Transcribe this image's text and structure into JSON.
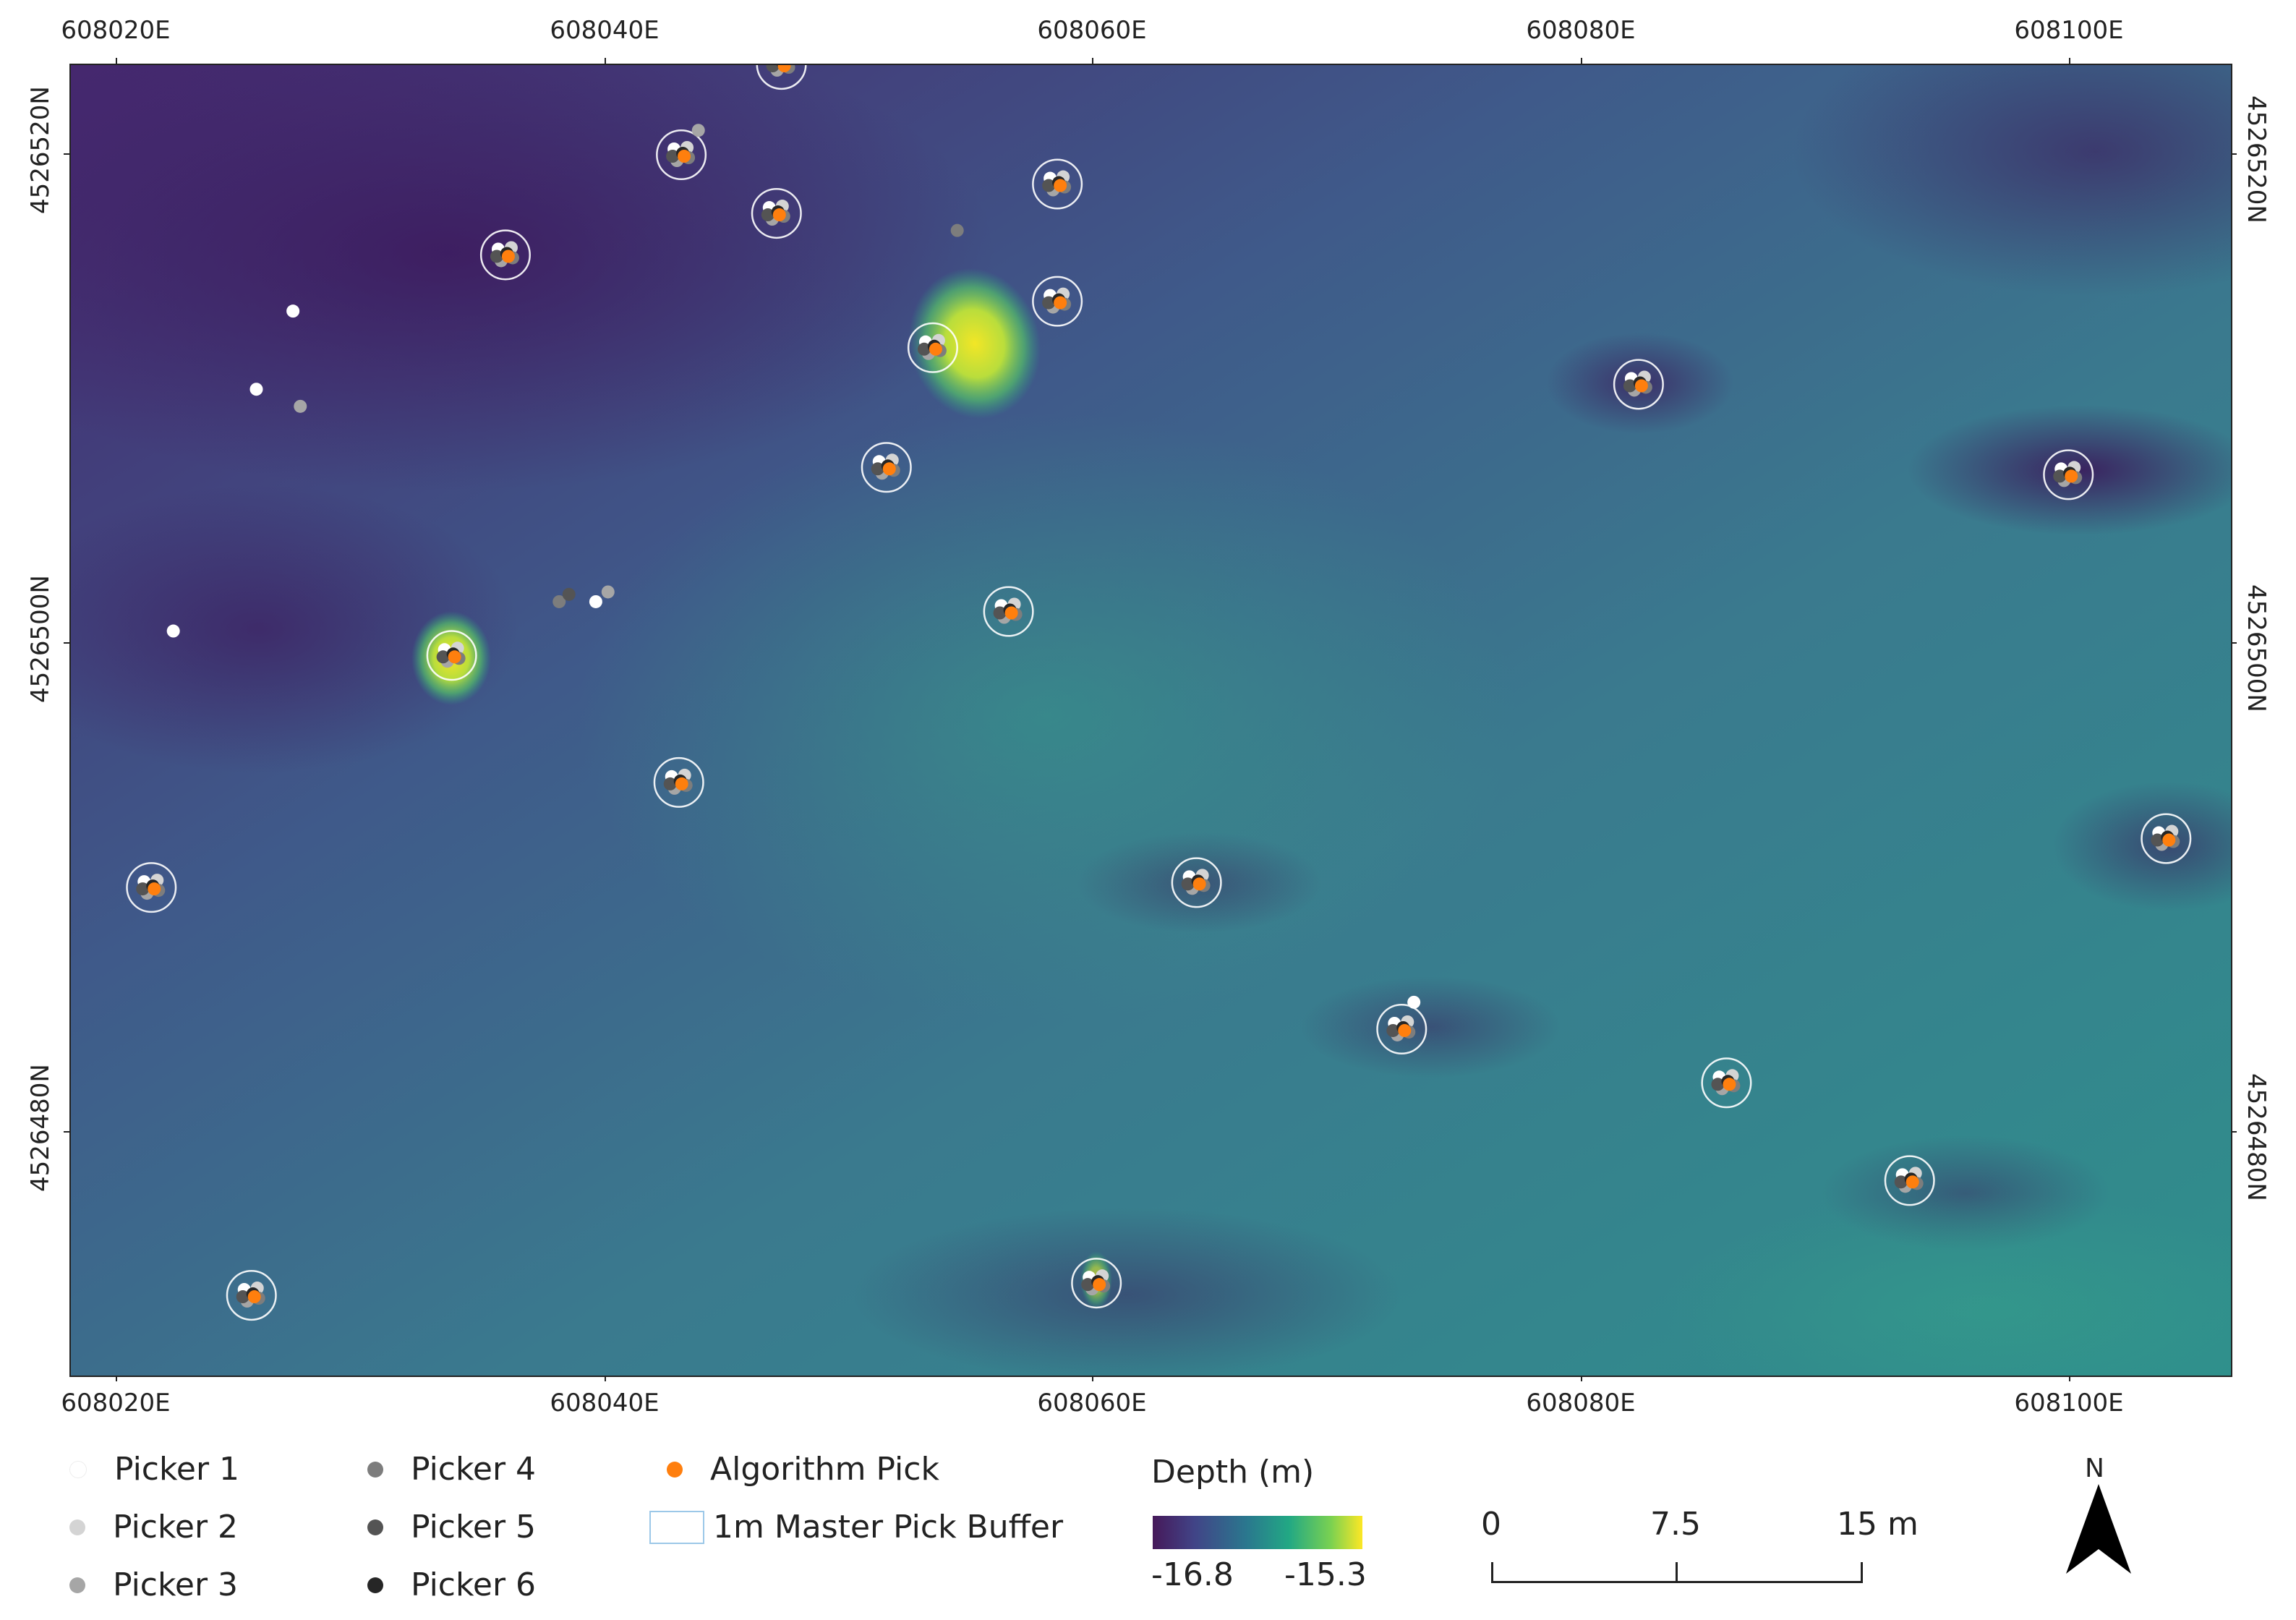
{
  "map": {
    "x_labels": [
      "608020E",
      "608040E",
      "608060E",
      "608080E",
      "608100E"
    ],
    "y_labels": [
      "4526520N",
      "4526500N",
      "4526480N"
    ],
    "master_picks": [
      {
        "e": 608047.2,
        "n": 4526523.7
      },
      {
        "e": 608043.1,
        "n": 4526520.0
      },
      {
        "e": 608047.0,
        "n": 4526517.6
      },
      {
        "e": 608058.5,
        "n": 4526518.8
      },
      {
        "e": 608035.9,
        "n": 4526515.9
      },
      {
        "e": 608058.5,
        "n": 4526514.0
      },
      {
        "e": 608053.4,
        "n": 4526512.1
      },
      {
        "e": 608082.3,
        "n": 4526510.6
      },
      {
        "e": 608051.5,
        "n": 4526507.2
      },
      {
        "e": 608099.9,
        "n": 4526506.9
      },
      {
        "e": 608056.5,
        "n": 4526501.3
      },
      {
        "e": 608033.7,
        "n": 4526499.5
      },
      {
        "e": 608043.0,
        "n": 4526494.3
      },
      {
        "e": 608103.9,
        "n": 4526492.0
      },
      {
        "e": 608021.4,
        "n": 4526490.0
      },
      {
        "e": 608064.2,
        "n": 4526490.2
      },
      {
        "e": 608072.6,
        "n": 4526484.2
      },
      {
        "e": 608085.9,
        "n": 4526482.0
      },
      {
        "e": 608093.4,
        "n": 4526478.0
      },
      {
        "e": 608025.5,
        "n": 4526473.3
      },
      {
        "e": 608060.1,
        "n": 4526473.8
      }
    ],
    "stray_picks": [
      {
        "e": 608027.2,
        "n": 4526513.6,
        "picker": 1
      },
      {
        "e": 608025.7,
        "n": 4526510.4,
        "picker": 1
      },
      {
        "e": 608027.5,
        "n": 4526509.7,
        "picker": 3
      },
      {
        "e": 608022.3,
        "n": 4526500.5,
        "picker": 1
      },
      {
        "e": 608038.1,
        "n": 4526501.7,
        "picker": 4
      },
      {
        "e": 608038.5,
        "n": 4526502.0,
        "picker": 5
      },
      {
        "e": 608039.6,
        "n": 4526501.7,
        "picker": 1
      },
      {
        "e": 608040.1,
        "n": 4526502.1,
        "picker": 3
      },
      {
        "e": 608054.4,
        "n": 4526516.9,
        "picker": 4
      },
      {
        "e": 608043.8,
        "n": 4526521.0,
        "picker": 3
      },
      {
        "e": 608073.1,
        "n": 4526485.3,
        "picker": 1
      }
    ]
  },
  "legend": {
    "items": [
      {
        "label": "Picker 1",
        "color": "#ffffff"
      },
      {
        "label": "Picker 2",
        "color": "#d4d4d4"
      },
      {
        "label": "Picker 3",
        "color": "#a6a6a6"
      },
      {
        "label": "Picker 4",
        "color": "#7d7d7d"
      },
      {
        "label": "Picker 5",
        "color": "#545454"
      },
      {
        "label": "Picker 6",
        "color": "#262626"
      },
      {
        "label": "Algorithm Pick",
        "color": "#ff7f0e"
      },
      {
        "label": "1m Master Pick Buffer",
        "color": "#9cc8e8"
      }
    ],
    "depth_title": "Depth (m)",
    "depth_min": "-16.8",
    "depth_max": "-15.3",
    "scale_labels": [
      "0",
      "7.5",
      "15 m"
    ],
    "north_label": "N"
  }
}
